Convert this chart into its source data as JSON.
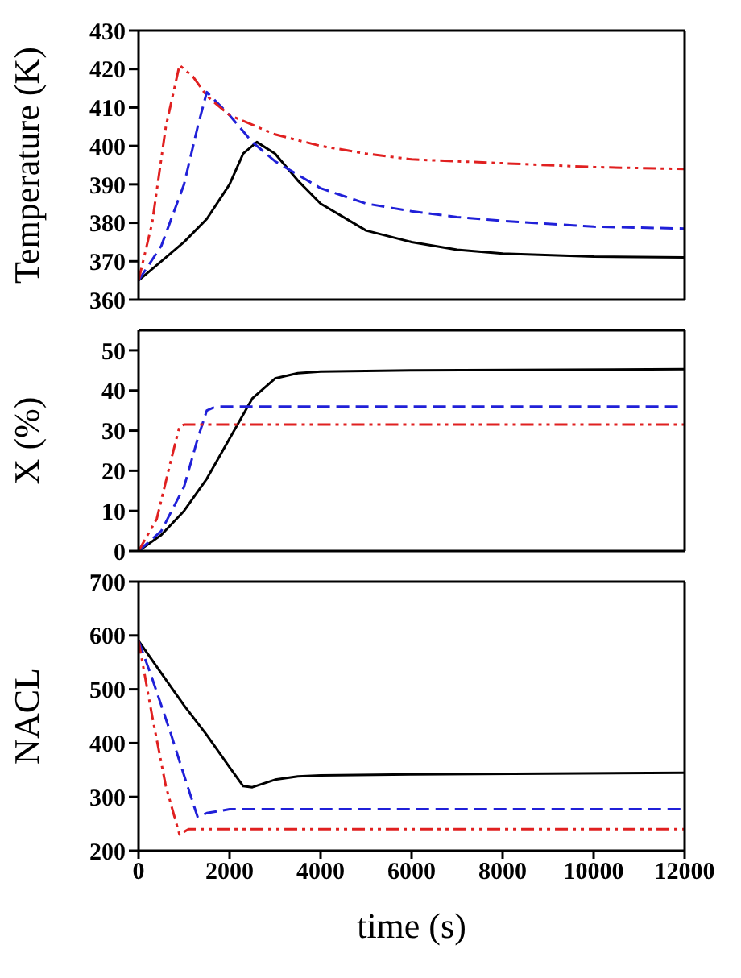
{
  "chart_data": [
    {
      "type": "line",
      "ylabel": "Temperature (K)",
      "xlim": [
        0,
        12000
      ],
      "xticks": [
        0,
        2000,
        4000,
        6000,
        8000,
        10000,
        12000
      ],
      "ylim": [
        360,
        430
      ],
      "yticks": [
        360,
        370,
        380,
        390,
        400,
        410,
        420,
        430
      ],
      "tick_labels": "y",
      "marker": "none",
      "series": [
        {
          "color": "#000000",
          "line_style": "solid",
          "x": [
            0,
            500,
            1000,
            1500,
            2000,
            2300,
            2600,
            3000,
            3500,
            4000,
            5000,
            6000,
            7000,
            8000,
            10000,
            12000
          ],
          "values": [
            365,
            370,
            375,
            381,
            390,
            398,
            401,
            398,
            391,
            385,
            378,
            375,
            373,
            372,
            371.2,
            371
          ]
        },
        {
          "color": "#2020d8",
          "line_style": "dashed",
          "x": [
            0,
            500,
            1000,
            1300,
            1500,
            2000,
            2500,
            3000,
            4000,
            5000,
            6000,
            7000,
            8000,
            10000,
            12000
          ],
          "values": [
            365,
            374,
            390,
            405,
            414,
            408,
            401,
            396,
            389,
            385,
            383,
            381.5,
            380.5,
            379,
            378.5
          ]
        },
        {
          "color": "#e02020",
          "line_style": "dotted",
          "x": [
            0,
            300,
            600,
            900,
            1200,
            1500,
            2000,
            3000,
            4000,
            5000,
            6000,
            7000,
            8000,
            10000,
            12000
          ],
          "values": [
            365,
            380,
            405,
            421,
            418,
            413,
            408,
            403,
            400,
            398,
            396.5,
            396,
            395.5,
            394.5,
            394
          ]
        }
      ]
    },
    {
      "type": "line",
      "ylabel": "X (%)",
      "xlim": [
        0,
        12000
      ],
      "xticks": [
        0,
        2000,
        4000,
        6000,
        8000,
        10000,
        12000
      ],
      "ylim": [
        0,
        55
      ],
      "yticks": [
        0,
        10,
        20,
        30,
        40,
        50
      ],
      "tick_labels": "y",
      "marker": "none",
      "series": [
        {
          "color": "#000000",
          "line_style": "solid",
          "x": [
            0,
            500,
            1000,
            1500,
            2000,
            2500,
            3000,
            3500,
            4000,
            6000,
            12000
          ],
          "values": [
            0,
            4,
            10,
            18,
            28,
            38,
            43,
            44.3,
            44.7,
            45,
            45.3
          ]
        },
        {
          "color": "#2020d8",
          "line_style": "dashed",
          "x": [
            0,
            500,
            1000,
            1300,
            1500,
            1700,
            12000
          ],
          "values": [
            0,
            5,
            16,
            28,
            35,
            36,
            36
          ]
        },
        {
          "color": "#e02020",
          "line_style": "dotted",
          "x": [
            0,
            400,
            700,
            900,
            1000,
            12000
          ],
          "values": [
            0,
            8,
            22,
            31,
            31.5,
            31.5
          ]
        }
      ]
    },
    {
      "type": "line",
      "xlabel": "time (s)",
      "ylabel": "NACL",
      "xlim": [
        0,
        12000
      ],
      "xticks": [
        0,
        2000,
        4000,
        6000,
        8000,
        10000,
        12000
      ],
      "ylim": [
        200,
        700
      ],
      "yticks": [
        200,
        300,
        400,
        500,
        600,
        700
      ],
      "marker": "none",
      "series": [
        {
          "color": "#000000",
          "line_style": "solid",
          "x": [
            0,
            500,
            1000,
            1500,
            2000,
            2300,
            2500,
            3000,
            3500,
            4000,
            6000,
            12000
          ],
          "values": [
            590,
            530,
            470,
            415,
            355,
            320,
            318,
            332,
            338,
            340,
            342,
            345
          ]
        },
        {
          "color": "#2020d8",
          "line_style": "dashed",
          "x": [
            0,
            300,
            700,
            1000,
            1300,
            1500,
            2000,
            12000
          ],
          "values": [
            590,
            520,
            420,
            340,
            262,
            270,
            277,
            277
          ]
        },
        {
          "color": "#e02020",
          "line_style": "dotted",
          "x": [
            0,
            300,
            600,
            900,
            1100,
            12000
          ],
          "values": [
            590,
            450,
            320,
            230,
            240,
            240
          ]
        }
      ]
    }
  ]
}
